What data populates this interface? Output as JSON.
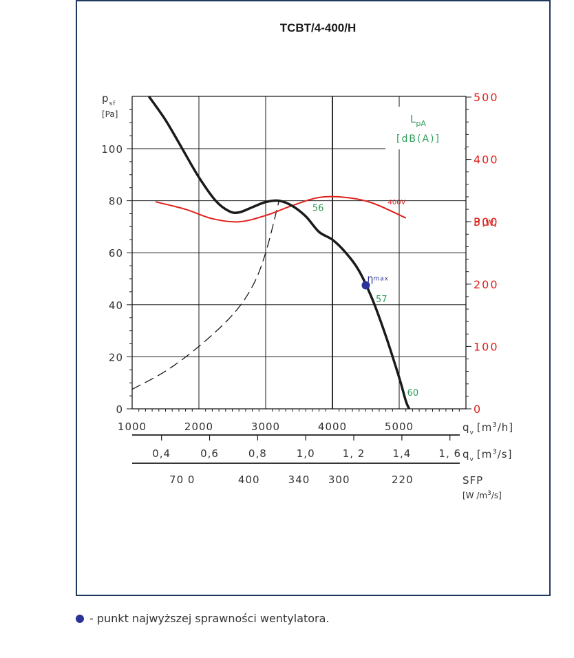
{
  "chart_data": {
    "type": "line",
    "title": "TCBT/4-400/H",
    "y_left": {
      "label_symbol": "p",
      "label_sub": "sf",
      "unit": "[Pa]",
      "ticks": [
        "0",
        "20",
        "40",
        "60",
        "80",
        "100"
      ],
      "range": [
        0,
        120
      ]
    },
    "y_right": {
      "label": "P",
      "unit": "[W]",
      "ticks": [
        "0",
        "100",
        "200",
        "300",
        "400",
        "500"
      ],
      "range": [
        0,
        500
      ]
    },
    "x_axis": {
      "label_symbol": "q",
      "label_sub": "v",
      "unit_prefix": "[m",
      "unit_sup": "3",
      "unit_suffix": "/h]",
      "ticks": [
        "1000",
        "2000",
        "3000",
        "4000",
        "5000"
      ],
      "range": [
        1000,
        6000
      ]
    },
    "x_axis_2": {
      "label_symbol": "q",
      "label_sub": "v",
      "unit_prefix": "[m",
      "unit_sup": "3",
      "unit_suffix": "/s]",
      "ticks": [
        {
          "label": "0,4",
          "value": 0.4
        },
        {
          "label": "0,6",
          "value": 0.6
        },
        {
          "label": "0,8",
          "value": 0.8
        },
        {
          "label": "1,0",
          "value": 1.0
        },
        {
          "label": "1, 2",
          "value": 1.2
        },
        {
          "label": "1,4",
          "value": 1.4
        },
        {
          "label": "1, 6",
          "value": 1.6
        }
      ]
    },
    "sfp_axis": {
      "label": "SFP",
      "unit_prefix": "[W /m",
      "unit_sup": "3",
      "unit_suffix": "/s]",
      "ticks": [
        {
          "label": "70 0",
          "at_qv_m3h": 1750
        },
        {
          "label": "400",
          "at_qv_m3h": 2750
        },
        {
          "label": "340",
          "at_qv_m3h": 3500
        },
        {
          "label": "300",
          "at_qv_m3h": 4100
        },
        {
          "label": "220",
          "at_qv_m3h": 5050
        }
      ]
    },
    "sound_legend": {
      "symbol": "L",
      "sub": "pA",
      "unit": "[dB(A)]"
    },
    "series": [
      {
        "role": "pressure",
        "color": "#1a1a1a",
        "points": [
          [
            1250,
            121
          ],
          [
            1500,
            111
          ],
          [
            1750,
            100
          ],
          [
            2000,
            89
          ],
          [
            2250,
            80
          ],
          [
            2450,
            76
          ],
          [
            2600,
            75.5
          ],
          [
            2800,
            77.5
          ],
          [
            3000,
            79.5
          ],
          [
            3200,
            80
          ],
          [
            3400,
            78
          ],
          [
            3600,
            74
          ],
          [
            3800,
            68
          ],
          [
            4000,
            65
          ],
          [
            4200,
            60
          ],
          [
            4400,
            53
          ],
          [
            4600,
            42
          ],
          [
            4800,
            28
          ],
          [
            5000,
            12
          ],
          [
            5100,
            3
          ],
          [
            5150,
            0
          ]
        ]
      },
      {
        "role": "power",
        "name": "400V",
        "color": "#e0201b",
        "points": [
          [
            1350,
            332
          ],
          [
            1800,
            320
          ],
          [
            2200,
            305
          ],
          [
            2600,
            300
          ],
          [
            3000,
            310
          ],
          [
            3400,
            326
          ],
          [
            3800,
            339
          ],
          [
            4200,
            339
          ],
          [
            4600,
            330
          ],
          [
            5100,
            306
          ]
        ]
      },
      {
        "role": "system",
        "style": "dashed",
        "color": "#1a1a1a",
        "points": [
          [
            1000,
            7.5
          ],
          [
            1500,
            14.5
          ],
          [
            2000,
            24
          ],
          [
            2500,
            36
          ],
          [
            2800,
            47
          ],
          [
            3000,
            60
          ],
          [
            3200,
            80
          ]
        ]
      }
    ],
    "sound_levels": [
      {
        "label": "56",
        "at_qv_m3h": 3700,
        "at_psf": 76
      },
      {
        "label": "57",
        "at_qv_m3h": 4650,
        "at_psf": 41
      },
      {
        "label": "60",
        "at_qv_m3h": 5120,
        "at_psf": 5
      }
    ],
    "eta_max": {
      "symbol": "η",
      "sub": "max",
      "qv_m3h": 4500,
      "psf": 47.5,
      "color": "#2b3399"
    }
  },
  "footnote": {
    "text": "- punkt najwyższej sprawności wentylatora."
  }
}
